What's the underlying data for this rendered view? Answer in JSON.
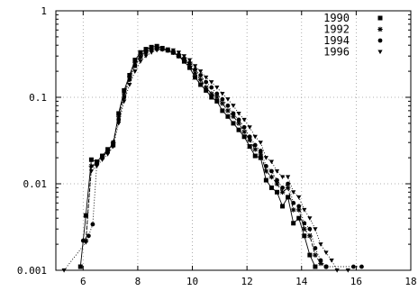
{
  "chart_data": {
    "type": "line",
    "title": "",
    "xlabel": "",
    "ylabel": "",
    "xlim": [
      5,
      18
    ],
    "ylim": [
      0.001,
      1
    ],
    "yscale": "log",
    "grid": true,
    "legend_position": "top-right",
    "x_ticks": [
      {
        "value": 6,
        "label": "6"
      },
      {
        "value": 8,
        "label": "8"
      },
      {
        "value": 10,
        "label": "10"
      },
      {
        "value": 12,
        "label": "12"
      },
      {
        "value": 14,
        "label": "14"
      },
      {
        "value": 16,
        "label": "16"
      },
      {
        "value": 18,
        "label": "18"
      }
    ],
    "y_ticks": [
      {
        "value": 1,
        "label": "1"
      },
      {
        "value": 0.1,
        "label": "0.1"
      },
      {
        "value": 0.01,
        "label": "0.01"
      },
      {
        "value": 0.001,
        "label": "0.001"
      }
    ],
    "series": [
      {
        "name": "1990",
        "marker": "square",
        "dash": "solid",
        "points": [
          [
            5.9,
            0.0011
          ],
          [
            6.1,
            0.0043
          ],
          [
            6.3,
            0.019
          ],
          [
            6.5,
            0.018
          ],
          [
            6.7,
            0.021
          ],
          [
            6.9,
            0.025
          ],
          [
            7.1,
            0.028
          ],
          [
            7.3,
            0.065
          ],
          [
            7.5,
            0.12
          ],
          [
            7.7,
            0.18
          ],
          [
            7.9,
            0.27
          ],
          [
            8.1,
            0.33
          ],
          [
            8.3,
            0.36
          ],
          [
            8.5,
            0.38
          ],
          [
            8.7,
            0.39
          ],
          [
            8.9,
            0.37
          ],
          [
            9.1,
            0.35
          ],
          [
            9.3,
            0.33
          ],
          [
            9.5,
            0.3
          ],
          [
            9.7,
            0.26
          ],
          [
            9.9,
            0.22
          ],
          [
            10.1,
            0.17
          ],
          [
            10.3,
            0.14
          ],
          [
            10.5,
            0.12
          ],
          [
            10.7,
            0.1
          ],
          [
            10.9,
            0.09
          ],
          [
            11.1,
            0.07
          ],
          [
            11.3,
            0.06
          ],
          [
            11.5,
            0.05
          ],
          [
            11.7,
            0.042
          ],
          [
            11.9,
            0.035
          ],
          [
            12.1,
            0.027
          ],
          [
            12.3,
            0.021
          ],
          [
            12.5,
            0.02
          ],
          [
            12.7,
            0.011
          ],
          [
            12.9,
            0.009
          ],
          [
            13.1,
            0.008
          ],
          [
            13.3,
            0.0055
          ],
          [
            13.5,
            0.007
          ],
          [
            13.7,
            0.0035
          ],
          [
            13.9,
            0.004
          ],
          [
            14.1,
            0.0025
          ],
          [
            14.3,
            0.0015
          ],
          [
            14.5,
            0.0011
          ]
        ]
      },
      {
        "name": "1992",
        "marker": "star",
        "dash": "dashed",
        "points": [
          [
            6.1,
            0.0022
          ],
          [
            6.3,
            0.016
          ],
          [
            6.5,
            0.017
          ],
          [
            6.7,
            0.02
          ],
          [
            6.9,
            0.024
          ],
          [
            7.1,
            0.03
          ],
          [
            7.3,
            0.06
          ],
          [
            7.5,
            0.11
          ],
          [
            7.7,
            0.17
          ],
          [
            7.9,
            0.25
          ],
          [
            8.1,
            0.3
          ],
          [
            8.3,
            0.34
          ],
          [
            8.5,
            0.36
          ],
          [
            8.7,
            0.37
          ],
          [
            8.9,
            0.36
          ],
          [
            9.1,
            0.35
          ],
          [
            9.3,
            0.33
          ],
          [
            9.5,
            0.3
          ],
          [
            9.7,
            0.27
          ],
          [
            9.9,
            0.24
          ],
          [
            10.1,
            0.19
          ],
          [
            10.3,
            0.16
          ],
          [
            10.5,
            0.13
          ],
          [
            10.7,
            0.11
          ],
          [
            10.9,
            0.1
          ],
          [
            11.1,
            0.085
          ],
          [
            11.3,
            0.07
          ],
          [
            11.5,
            0.06
          ],
          [
            11.7,
            0.05
          ],
          [
            11.9,
            0.04
          ],
          [
            12.1,
            0.032
          ],
          [
            12.3,
            0.025
          ],
          [
            12.5,
            0.022
          ],
          [
            12.7,
            0.014
          ],
          [
            12.9,
            0.012
          ],
          [
            13.1,
            0.01
          ],
          [
            13.3,
            0.008
          ],
          [
            13.5,
            0.009
          ],
          [
            13.7,
            0.005
          ],
          [
            13.9,
            0.005
          ],
          [
            14.1,
            0.003
          ],
          [
            14.3,
            0.0025
          ],
          [
            14.5,
            0.0015
          ],
          [
            14.7,
            0.0012
          ],
          [
            14.9,
            0.0011
          ]
        ]
      },
      {
        "name": "1994",
        "marker": "circle",
        "dash": "dotted",
        "points": [
          [
            6.0,
            0.0022
          ],
          [
            6.2,
            0.0025
          ],
          [
            6.35,
            0.0034
          ],
          [
            6.5,
            0.017
          ],
          [
            6.7,
            0.021
          ],
          [
            6.9,
            0.023
          ],
          [
            7.1,
            0.03
          ],
          [
            7.3,
            0.055
          ],
          [
            7.5,
            0.1
          ],
          [
            7.7,
            0.16
          ],
          [
            7.9,
            0.23
          ],
          [
            8.1,
            0.29
          ],
          [
            8.3,
            0.33
          ],
          [
            8.5,
            0.35
          ],
          [
            8.7,
            0.36
          ],
          [
            8.9,
            0.36
          ],
          [
            9.1,
            0.35
          ],
          [
            9.3,
            0.33
          ],
          [
            9.5,
            0.31
          ],
          [
            9.7,
            0.28
          ],
          [
            9.9,
            0.25
          ],
          [
            10.1,
            0.21
          ],
          [
            10.3,
            0.18
          ],
          [
            10.5,
            0.15
          ],
          [
            10.7,
            0.13
          ],
          [
            10.9,
            0.11
          ],
          [
            11.1,
            0.095
          ],
          [
            11.3,
            0.08
          ],
          [
            11.5,
            0.065
          ],
          [
            11.7,
            0.055
          ],
          [
            11.9,
            0.045
          ],
          [
            12.1,
            0.035
          ],
          [
            12.3,
            0.028
          ],
          [
            12.5,
            0.024
          ],
          [
            12.7,
            0.016
          ],
          [
            12.9,
            0.014
          ],
          [
            13.1,
            0.011
          ],
          [
            13.3,
            0.009
          ],
          [
            13.5,
            0.01
          ],
          [
            13.7,
            0.006
          ],
          [
            13.9,
            0.0055
          ],
          [
            14.1,
            0.0035
          ],
          [
            14.3,
            0.003
          ],
          [
            14.5,
            0.0018
          ],
          [
            14.7,
            0.0013
          ],
          [
            14.9,
            0.0011
          ],
          [
            15.9,
            0.0011
          ],
          [
            16.2,
            0.0011
          ]
        ]
      },
      {
        "name": "1996",
        "marker": "triangle-down",
        "dash": "dotted",
        "points": [
          [
            5.3,
            0.001
          ],
          [
            6.1,
            0.0021
          ],
          [
            6.3,
            0.014
          ],
          [
            6.5,
            0.016
          ],
          [
            6.7,
            0.019
          ],
          [
            6.9,
            0.022
          ],
          [
            7.1,
            0.027
          ],
          [
            7.3,
            0.05
          ],
          [
            7.5,
            0.09
          ],
          [
            7.7,
            0.14
          ],
          [
            7.9,
            0.2
          ],
          [
            8.1,
            0.26
          ],
          [
            8.3,
            0.3
          ],
          [
            8.5,
            0.33
          ],
          [
            8.7,
            0.35
          ],
          [
            8.9,
            0.36
          ],
          [
            9.1,
            0.36
          ],
          [
            9.3,
            0.35
          ],
          [
            9.5,
            0.33
          ],
          [
            9.7,
            0.3
          ],
          [
            9.9,
            0.27
          ],
          [
            10.1,
            0.23
          ],
          [
            10.3,
            0.2
          ],
          [
            10.5,
            0.17
          ],
          [
            10.7,
            0.15
          ],
          [
            10.9,
            0.13
          ],
          [
            11.1,
            0.11
          ],
          [
            11.3,
            0.095
          ],
          [
            11.5,
            0.08
          ],
          [
            11.7,
            0.065
          ],
          [
            11.9,
            0.055
          ],
          [
            12.1,
            0.045
          ],
          [
            12.3,
            0.035
          ],
          [
            12.5,
            0.03
          ],
          [
            12.7,
            0.02
          ],
          [
            12.9,
            0.018
          ],
          [
            13.1,
            0.014
          ],
          [
            13.3,
            0.012
          ],
          [
            13.5,
            0.012
          ],
          [
            13.7,
            0.008
          ],
          [
            13.9,
            0.007
          ],
          [
            14.1,
            0.005
          ],
          [
            14.3,
            0.004
          ],
          [
            14.5,
            0.003
          ],
          [
            14.7,
            0.002
          ],
          [
            14.9,
            0.0016
          ],
          [
            15.1,
            0.0013
          ],
          [
            15.3,
            0.001
          ],
          [
            15.7,
            0.001
          ]
        ]
      }
    ]
  }
}
